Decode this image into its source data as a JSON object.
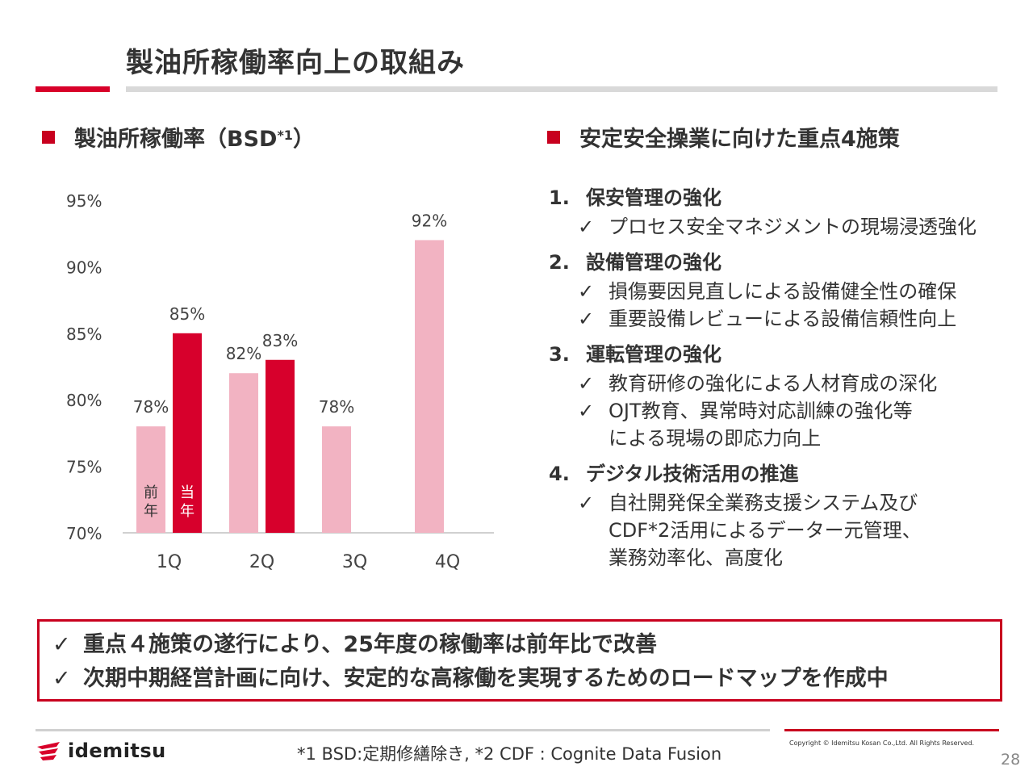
{
  "title": "製油所稼働率向上の取組み",
  "left_section": {
    "heading": "製油所稼働率（BSD",
    "heading_sup": "*1",
    "heading_close": "）"
  },
  "right_section": {
    "heading": "安定安全操業に向けた重点4施策"
  },
  "chart_data": {
    "type": "bar",
    "categories": [
      "1Q",
      "2Q",
      "3Q",
      "4Q"
    ],
    "series": [
      {
        "name": "前年",
        "values": [
          78,
          82,
          78,
          92
        ]
      },
      {
        "name": "当年",
        "values": [
          85,
          83,
          null,
          null
        ]
      }
    ],
    "data_labels": [
      [
        "78%",
        "82%",
        "78%",
        "92%"
      ],
      [
        "85%",
        "83%",
        "",
        ""
      ]
    ],
    "y_ticks": [
      "95%",
      "90%",
      "85%",
      "80%",
      "75%",
      "70%"
    ],
    "ylim": [
      70,
      95
    ],
    "legend_in_bars": [
      "前\n年",
      "当\n年"
    ],
    "colors": {
      "prev": "#f2b3c2",
      "curr": "#d7002c"
    }
  },
  "measures": [
    {
      "num": "1.",
      "title": "保安管理の強化",
      "items": [
        "プロセス安全マネジメントの現場浸透強化"
      ]
    },
    {
      "num": "2.",
      "title": "設備管理の強化",
      "items": [
        "損傷要因見直しによる設備健全性の確保",
        "重要設備レビューによる設備信頼性向上"
      ]
    },
    {
      "num": "3.",
      "title": "運転管理の強化",
      "items": [
        "教育研修の強化による人材育成の深化",
        "OJT教育、異常時対応訓練の強化等\nによる現場の即応力向上"
      ]
    },
    {
      "num": "4.",
      "title": "デジタル技術活用の推進",
      "items": [
        "自社開発保全業務支援システム及び\nCDF*2活用によるデーター元管理、\n業務効率化、高度化"
      ]
    }
  ],
  "check_mark": "✓",
  "summary": [
    "重点４施策の遂行により、25年度の稼働率は前年比で改善",
    "次期中期経営計画に向け、安定的な高稼働を実現するためのロードマップを作成中"
  ],
  "footer": {
    "logo_text": "idemitsu",
    "footnote": "*1 BSD:定期修繕除き,  *2 CDF : Cognite Data Fusion",
    "copyright": "Copyright © Idemitsu Kosan Co.,Ltd.  All Rights Reserved.",
    "page": "28"
  }
}
